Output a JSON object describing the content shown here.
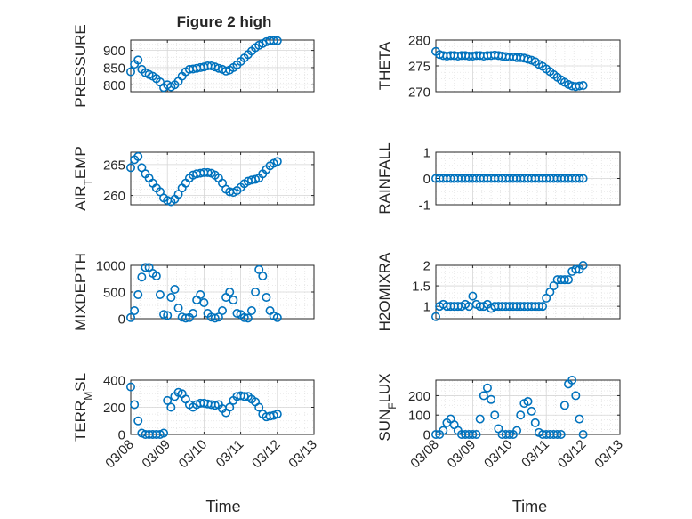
{
  "figure": {
    "title": "Figure 2 high",
    "xlabel": "Time",
    "colors": {
      "marker": "#0072BD",
      "axis": "#262626",
      "grid": "#d9d9d9",
      "background": "#ffffff"
    }
  },
  "chart_data": [
    {
      "type": "scatter",
      "title": "Figure 2 high",
      "xlabel": "",
      "ylabel": "PRESSURE",
      "x_unit": "days since 03/08",
      "xlim": [
        0,
        5
      ],
      "ylim": [
        780,
        930
      ],
      "yticks": [
        800,
        850,
        900
      ],
      "xticks": [],
      "grid": true,
      "x": [
        0.0,
        0.1,
        0.2,
        0.3,
        0.4,
        0.5,
        0.6,
        0.7,
        0.8,
        0.9,
        1.0,
        1.1,
        1.2,
        1.3,
        1.4,
        1.5,
        1.6,
        1.7,
        1.8,
        1.9,
        2.0,
        2.1,
        2.2,
        2.3,
        2.4,
        2.5,
        2.6,
        2.7,
        2.8,
        2.9,
        3.0,
        3.1,
        3.2,
        3.3,
        3.4,
        3.5,
        3.6,
        3.7,
        3.8,
        3.9,
        4.0
      ],
      "y": [
        838,
        860,
        872,
        845,
        835,
        830,
        825,
        818,
        808,
        792,
        800,
        794,
        800,
        810,
        825,
        838,
        845,
        846,
        848,
        850,
        852,
        855,
        855,
        852,
        848,
        845,
        840,
        843,
        850,
        858,
        868,
        878,
        888,
        898,
        908,
        915,
        920,
        925,
        928,
        928,
        928
      ]
    },
    {
      "type": "scatter",
      "xlabel": "",
      "ylabel": "THETA",
      "x_unit": "days since 03/08",
      "xlim": [
        0,
        5
      ],
      "ylim": [
        270,
        280
      ],
      "yticks": [
        270,
        275,
        280
      ],
      "xticks": [],
      "grid": true,
      "x": [
        0.0,
        0.1,
        0.2,
        0.3,
        0.4,
        0.5,
        0.6,
        0.7,
        0.8,
        0.9,
        1.0,
        1.1,
        1.2,
        1.3,
        1.4,
        1.5,
        1.6,
        1.7,
        1.8,
        1.9,
        2.0,
        2.1,
        2.2,
        2.3,
        2.4,
        2.5,
        2.6,
        2.7,
        2.8,
        2.9,
        3.0,
        3.1,
        3.2,
        3.3,
        3.4,
        3.5,
        3.6,
        3.7,
        3.8,
        3.9,
        4.0
      ],
      "y": [
        277.8,
        277.2,
        277.0,
        276.9,
        277.0,
        277.0,
        276.9,
        277.0,
        277.0,
        276.9,
        276.9,
        277.0,
        277.0,
        276.9,
        277.0,
        277.0,
        277.1,
        277.0,
        276.9,
        276.8,
        276.7,
        276.7,
        276.6,
        276.6,
        276.5,
        276.3,
        276.1,
        275.8,
        275.3,
        274.9,
        274.4,
        273.9,
        273.3,
        272.8,
        272.3,
        271.8,
        271.4,
        271.1,
        271.0,
        271.1,
        271.2
      ]
    },
    {
      "type": "scatter",
      "xlabel": "",
      "ylabel": "AIR_TEMP",
      "x_unit": "days since 03/08",
      "xlim": [
        0,
        5
      ],
      "ylim": [
        258.5,
        267
      ],
      "yticks": [
        260,
        265
      ],
      "xticks": [],
      "grid": true,
      "x": [
        0.0,
        0.1,
        0.2,
        0.3,
        0.4,
        0.5,
        0.6,
        0.7,
        0.8,
        0.9,
        1.0,
        1.1,
        1.2,
        1.3,
        1.4,
        1.5,
        1.6,
        1.7,
        1.8,
        1.9,
        2.0,
        2.1,
        2.2,
        2.3,
        2.4,
        2.5,
        2.6,
        2.7,
        2.8,
        2.9,
        3.0,
        3.1,
        3.2,
        3.3,
        3.4,
        3.5,
        3.6,
        3.7,
        3.8,
        3.9,
        4.0
      ],
      "y": [
        264.5,
        265.8,
        266.3,
        264.5,
        263.5,
        262.8,
        262.0,
        261.2,
        260.6,
        259.6,
        259.2,
        259.0,
        259.4,
        260.2,
        261.2,
        262.0,
        262.8,
        263.3,
        263.5,
        263.6,
        263.7,
        263.7,
        263.6,
        263.3,
        262.8,
        262.0,
        261.0,
        260.6,
        260.5,
        260.8,
        261.3,
        261.9,
        262.3,
        262.5,
        262.6,
        262.8,
        263.5,
        264.2,
        264.8,
        265.2,
        265.5
      ]
    },
    {
      "type": "scatter",
      "xlabel": "",
      "ylabel": "RAINFALL",
      "x_unit": "days since 03/08",
      "xlim": [
        0,
        5
      ],
      "ylim": [
        -1,
        1
      ],
      "yticks": [
        -1,
        0,
        1
      ],
      "xticks": [],
      "grid": true,
      "x": [
        0.0,
        0.1,
        0.2,
        0.3,
        0.4,
        0.5,
        0.6,
        0.7,
        0.8,
        0.9,
        1.0,
        1.1,
        1.2,
        1.3,
        1.4,
        1.5,
        1.6,
        1.7,
        1.8,
        1.9,
        2.0,
        2.1,
        2.2,
        2.3,
        2.4,
        2.5,
        2.6,
        2.7,
        2.8,
        2.9,
        3.0,
        3.1,
        3.2,
        3.3,
        3.4,
        3.5,
        3.6,
        3.7,
        3.8,
        3.9,
        4.0
      ],
      "y": [
        0,
        0,
        0,
        0,
        0,
        0,
        0,
        0,
        0,
        0,
        0,
        0,
        0,
        0,
        0,
        0,
        0,
        0,
        0,
        0,
        0,
        0,
        0,
        0,
        0,
        0,
        0,
        0,
        0,
        0,
        0,
        0,
        0,
        0,
        0,
        0,
        0,
        0,
        0,
        0,
        0
      ]
    },
    {
      "type": "scatter",
      "xlabel": "",
      "ylabel": "MIXDEPTH",
      "x_unit": "days since 03/08",
      "xlim": [
        0,
        5
      ],
      "ylim": [
        0,
        1000
      ],
      "yticks": [
        0,
        500,
        1000
      ],
      "xticks": [],
      "grid": true,
      "x": [
        0.0,
        0.1,
        0.2,
        0.3,
        0.4,
        0.5,
        0.6,
        0.7,
        0.8,
        0.9,
        1.0,
        1.1,
        1.2,
        1.3,
        1.4,
        1.5,
        1.6,
        1.7,
        1.8,
        1.9,
        2.0,
        2.1,
        2.2,
        2.3,
        2.4,
        2.5,
        2.6,
        2.7,
        2.8,
        2.9,
        3.0,
        3.1,
        3.2,
        3.3,
        3.4,
        3.5,
        3.6,
        3.7,
        3.8,
        3.9,
        4.0
      ],
      "y": [
        20,
        150,
        450,
        780,
        960,
        960,
        850,
        800,
        450,
        80,
        60,
        400,
        550,
        200,
        30,
        10,
        20,
        100,
        350,
        450,
        300,
        100,
        30,
        10,
        30,
        150,
        400,
        500,
        350,
        100,
        80,
        20,
        10,
        150,
        500,
        920,
        800,
        400,
        150,
        50,
        20
      ]
    },
    {
      "type": "scatter",
      "xlabel": "",
      "ylabel": "H2OMIXRA",
      "x_unit": "days since 03/08",
      "xlim": [
        0,
        5
      ],
      "ylim": [
        0.7,
        2
      ],
      "yticks": [
        1,
        1.5,
        2
      ],
      "xticks": [],
      "grid": true,
      "x": [
        0.0,
        0.1,
        0.2,
        0.3,
        0.4,
        0.5,
        0.6,
        0.7,
        0.8,
        0.9,
        1.0,
        1.1,
        1.2,
        1.3,
        1.4,
        1.5,
        1.6,
        1.7,
        1.8,
        1.9,
        2.0,
        2.1,
        2.2,
        2.3,
        2.4,
        2.5,
        2.6,
        2.7,
        2.8,
        2.9,
        3.0,
        3.1,
        3.2,
        3.3,
        3.4,
        3.5,
        3.6,
        3.7,
        3.8,
        3.9,
        4.0
      ],
      "y": [
        0.75,
        1.0,
        1.05,
        1.0,
        1.0,
        1.0,
        1.0,
        1.0,
        1.05,
        1.0,
        1.25,
        1.05,
        1.0,
        1.0,
        1.05,
        0.95,
        1.0,
        1.0,
        1.0,
        1.0,
        1.0,
        1.0,
        1.0,
        1.0,
        1.0,
        1.0,
        1.0,
        1.0,
        1.0,
        1.0,
        1.2,
        1.35,
        1.5,
        1.65,
        1.65,
        1.65,
        1.65,
        1.85,
        1.9,
        1.9,
        2.0
      ]
    },
    {
      "type": "scatter",
      "xlabel": "Time",
      "ylabel": "TERR_MSL",
      "x_unit": "days since 03/08",
      "xlim": [
        0,
        5
      ],
      "ylim": [
        0,
        400
      ],
      "yticks": [
        0,
        200,
        400
      ],
      "xticks": [
        "03/08",
        "03/09",
        "03/10",
        "03/11",
        "03/12",
        "03/13"
      ],
      "grid": true,
      "x": [
        0.0,
        0.1,
        0.2,
        0.3,
        0.4,
        0.5,
        0.6,
        0.7,
        0.8,
        0.9,
        1.0,
        1.1,
        1.2,
        1.3,
        1.4,
        1.5,
        1.6,
        1.7,
        1.8,
        1.9,
        2.0,
        2.1,
        2.2,
        2.3,
        2.4,
        2.5,
        2.6,
        2.7,
        2.8,
        2.9,
        3.0,
        3.1,
        3.2,
        3.3,
        3.4,
        3.5,
        3.6,
        3.7,
        3.8,
        3.9,
        4.0
      ],
      "y": [
        350,
        220,
        100,
        10,
        0,
        0,
        0,
        0,
        0,
        10,
        250,
        200,
        280,
        310,
        300,
        260,
        220,
        200,
        220,
        230,
        230,
        225,
        220,
        215,
        220,
        190,
        160,
        200,
        250,
        280,
        285,
        280,
        280,
        260,
        240,
        200,
        150,
        130,
        135,
        140,
        150
      ]
    },
    {
      "type": "scatter",
      "xlabel": "Time",
      "ylabel": "SUN_FLUX",
      "x_unit": "days since 03/08",
      "xlim": [
        0,
        5
      ],
      "ylim": [
        0,
        280
      ],
      "yticks": [
        0,
        100,
        200
      ],
      "xticks": [
        "03/08",
        "03/09",
        "03/10",
        "03/11",
        "03/12",
        "03/13"
      ],
      "grid": true,
      "x": [
        0.0,
        0.1,
        0.2,
        0.3,
        0.4,
        0.5,
        0.6,
        0.7,
        0.8,
        0.9,
        1.0,
        1.1,
        1.2,
        1.3,
        1.4,
        1.5,
        1.6,
        1.7,
        1.8,
        1.9,
        2.0,
        2.1,
        2.2,
        2.3,
        2.4,
        2.5,
        2.6,
        2.7,
        2.8,
        2.9,
        3.0,
        3.1,
        3.2,
        3.3,
        3.4,
        3.5,
        3.6,
        3.7,
        3.8,
        3.9,
        4.0
      ],
      "y": [
        0,
        0,
        20,
        60,
        80,
        50,
        20,
        0,
        0,
        0,
        0,
        0,
        80,
        200,
        240,
        180,
        100,
        30,
        0,
        0,
        0,
        0,
        20,
        100,
        160,
        170,
        120,
        60,
        10,
        0,
        0,
        0,
        0,
        0,
        0,
        150,
        260,
        280,
        200,
        80,
        0
      ]
    }
  ]
}
